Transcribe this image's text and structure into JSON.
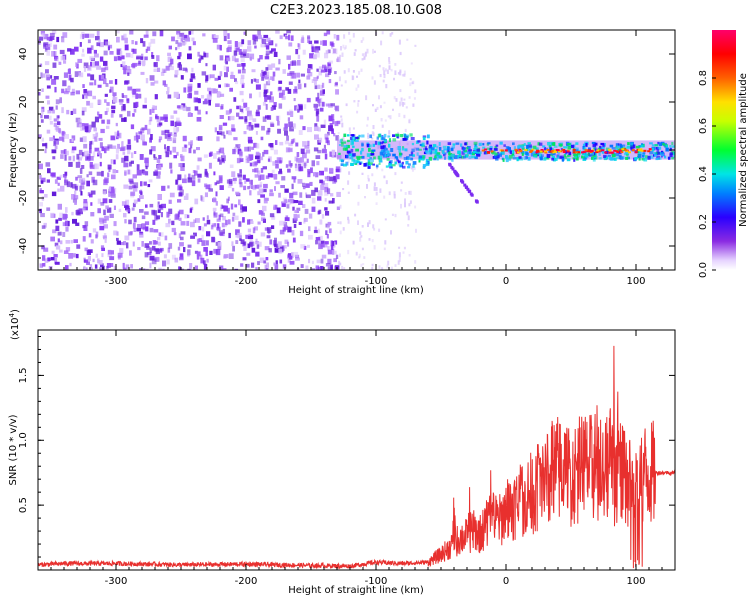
{
  "title": "C2E3.2023.185.08.10.G08",
  "chart_data": [
    {
      "type": "heatmap",
      "xlabel": "Height of straight line (km)",
      "ylabel": "Frequency (Hz)",
      "xlim": [
        -360,
        130
      ],
      "ylim": [
        -50,
        50
      ],
      "x_ticks": [
        -300,
        -200,
        -100,
        0,
        100
      ],
      "y_ticks": [
        -40,
        -20,
        0,
        20,
        40
      ],
      "colorbar": {
        "label": "Normalized spectral amplitude",
        "range": [
          0,
          1
        ],
        "ticks": [
          "0.0",
          "0.2",
          "0.4",
          "0.6",
          "0.8"
        ],
        "colormap": "rainbow"
      },
      "features": {
        "noise_region_x": [
          -360,
          -130
        ],
        "transition_region_x": [
          -130,
          -70
        ],
        "signal_line_frequency_hz": 0,
        "signal_x_range": [
          -130,
          130
        ],
        "peak_amplitude_x_range": [
          -20,
          110
        ],
        "side_branch_x": [
          -45,
          -22
        ],
        "side_branch_frequency_hz": [
          -5,
          -22
        ]
      }
    },
    {
      "type": "line",
      "xlabel": "Height of straight line (km)",
      "ylabel": "SNR (10 * v/v)",
      "y_multiplier": "(x10^4)",
      "y_exponent_base": "(x10",
      "y_exponent": "4",
      "y_exponent_close": ")",
      "xlim": [
        -360,
        130
      ],
      "ylim": [
        0,
        18500
      ],
      "x_ticks": [
        -300,
        -200,
        -100,
        0,
        100
      ],
      "y_ticks": [
        5000,
        10000,
        15000
      ],
      "y_tick_labels": [
        "0.5",
        "1.0",
        "1.5"
      ],
      "color": "#e8302e",
      "series": [
        {
          "x": [
            -360,
            -340,
            -300,
            -250,
            -200,
            -150,
            -120,
            -100,
            -80,
            -60,
            -50,
            -40,
            -35,
            -30,
            -25,
            -20,
            -15,
            -10,
            -5,
            0,
            5,
            10,
            15,
            20,
            25,
            30,
            35,
            40,
            45,
            50,
            55,
            60,
            65,
            70,
            75,
            80,
            85,
            90,
            95,
            100,
            105,
            110,
            115,
            120,
            130
          ],
          "values": [
            400,
            500,
            500,
            400,
            450,
            350,
            300,
            600,
            500,
            600,
            1200,
            2000,
            2500,
            2600,
            3000,
            2800,
            3500,
            4000,
            3800,
            4500,
            5000,
            5200,
            5500,
            6000,
            6500,
            7000,
            7500,
            7800,
            7500,
            7300,
            7600,
            8000,
            7800,
            8200,
            8000,
            8500,
            7000,
            7500,
            6500,
            6000,
            7500,
            7400,
            7500,
            7500,
            7500
          ],
          "spikes": [
            [
              -40,
              6200
            ],
            [
              -28,
              6600
            ],
            [
              -12,
              8800
            ],
            [
              0,
              7600
            ],
            [
              12,
              8600
            ],
            [
              25,
              10300
            ],
            [
              35,
              9400
            ],
            [
              45,
              9100
            ],
            [
              58,
              10100
            ],
            [
              70,
              11100
            ],
            [
              76,
              12300
            ],
            [
              80,
              16200
            ],
            [
              83,
              18500
            ],
            [
              86,
              15800
            ],
            [
              90,
              13500
            ],
            [
              95,
              11600
            ],
            [
              100,
              9400
            ],
            [
              103,
              10200
            ]
          ]
        }
      ]
    }
  ]
}
